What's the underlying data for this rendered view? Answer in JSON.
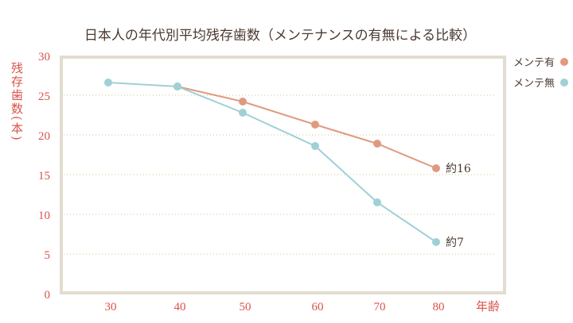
{
  "chart_data": {
    "type": "line",
    "title": "日本人の年代別平均残存歯数（メンテナンスの有無による比較）",
    "xlabel": "年齢",
    "ylabel": "残存歯数(本)",
    "categories": [
      "30",
      "40",
      "50",
      "60",
      "70",
      "80"
    ],
    "ylim": [
      0,
      30
    ],
    "yticks": [
      "0",
      "5",
      "10",
      "15",
      "20",
      "25",
      "30"
    ],
    "grid": true,
    "legend": "top-right",
    "series": [
      {
        "name": "メンテ有",
        "color": "#e09a80",
        "values": [
          null,
          26.1,
          24.2,
          21.3,
          18.9,
          15.8
        ],
        "end_label": "約16"
      },
      {
        "name": "メンテ無",
        "color": "#9fd0d6",
        "values": [
          26.6,
          26.1,
          22.8,
          18.6,
          11.5,
          6.5
        ],
        "end_label": "約7"
      }
    ]
  }
}
